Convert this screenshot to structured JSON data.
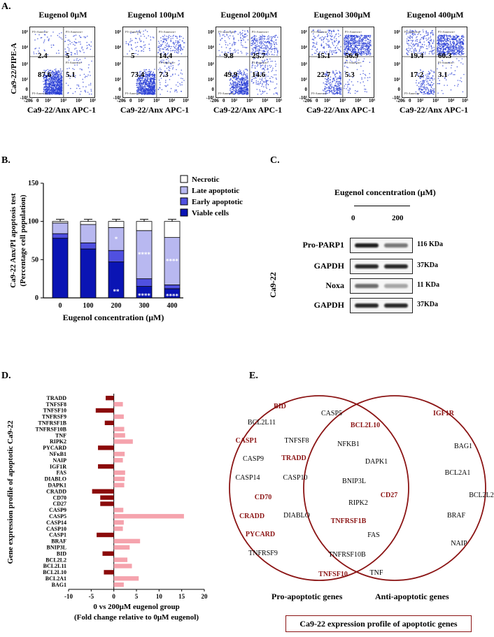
{
  "panels": {
    "a": "A.",
    "b": "B.",
    "c": "C.",
    "d": "D.",
    "e": "E."
  },
  "flow": {
    "ylabel": "Ca9-22/PIPE-A",
    "xlabel": "Ca9-22/Anx APC-1",
    "y_ticks": [
      "10⁵",
      "10⁴",
      "10³",
      "10²",
      "0",
      "-10⁵"
    ],
    "x_ticks": [
      "-206",
      "0",
      "10²",
      "10³",
      "10⁴",
      "10⁵"
    ],
    "gate_labels": {
      "tl": "PI+Annexin-",
      "tr": "PI+Annexin+",
      "bl": "PI-Annexin-",
      "br": "PI-Annexin+"
    },
    "plots": [
      {
        "title": "Eugenol 0μM",
        "q": [
          "2.4",
          "5",
          "87.6",
          "5.1"
        ]
      },
      {
        "title": "Eugenol 100μM",
        "q": [
          "5",
          "14.4",
          "73.4",
          "7.3"
        ]
      },
      {
        "title": "Eugenol 200μM",
        "q": [
          "9.8",
          "25.7",
          "49.9",
          "14.6"
        ]
      },
      {
        "title": "Eugenol 300μM",
        "q": [
          "15.1",
          "56.9",
          "22.7",
          "5.3"
        ]
      },
      {
        "title": "Eugenol 400μM",
        "q": [
          "19.4",
          "60.3",
          "17.2",
          "3.1"
        ]
      }
    ]
  },
  "chart_data": [
    {
      "type": "bar",
      "title": "",
      "xlabel": "Eugenol concentration (μM)",
      "ylabel": "Ca9-22 Anx/PI apoptosis test (Percentage cell population)",
      "ylim": [
        0,
        150
      ],
      "y_ticks": [
        "0",
        "50",
        "100",
        "150"
      ],
      "categories": [
        "0",
        "100",
        "200",
        "300",
        "400"
      ],
      "stacked": true,
      "series": [
        {
          "name": "Viable cells",
          "color": "#0a14b4",
          "values": [
            78,
            64,
            47,
            15,
            12
          ]
        },
        {
          "name": "Early apoptotic",
          "color": "#5050e0",
          "values": [
            6,
            8,
            15,
            10,
            5
          ]
        },
        {
          "name": "Late apoptotic",
          "color": "#b8b8f0",
          "values": [
            14,
            24,
            30,
            63,
            62
          ]
        },
        {
          "name": "Necrotic",
          "color": "#ffffff",
          "values": [
            2,
            4,
            8,
            12,
            21
          ]
        }
      ],
      "annotations": [
        {
          "cat": "200",
          "text": "*",
          "pos": "late"
        },
        {
          "cat": "300",
          "text": "****",
          "pos": "late"
        },
        {
          "cat": "400",
          "text": "****",
          "pos": "late"
        },
        {
          "cat": "200",
          "text": "**",
          "pos": "viable"
        },
        {
          "cat": "300",
          "text": "****",
          "pos": "viable"
        },
        {
          "cat": "400",
          "text": "****",
          "pos": "viable"
        }
      ],
      "legend_position": "top-right"
    },
    {
      "type": "bar",
      "orientation": "horizontal",
      "xlabel": "0 vs 200μM eugenol group",
      "xlabel2": "(Fold change relative to 0μM eugenol)",
      "ylabel": "Gene expression profile of apoptotic Ca9-22",
      "xlim": [
        -10,
        20
      ],
      "x_ticks": [
        "-10",
        "-5",
        "0",
        "5",
        "10",
        "15",
        "20"
      ],
      "categories": [
        "TRADD",
        "TNFSF8",
        "TNFSF10",
        "TNFRSF9",
        "TNFRSF1B",
        "TNFRSF10B",
        "TNF",
        "RIPK2",
        "PYCARD",
        "NFκB1",
        "NAIP",
        "IGF1R",
        "FAS",
        "DIABLO",
        "DAPK1",
        "CRADD",
        "CD70",
        "CD27",
        "CASP9",
        "CASP5",
        "CASP14",
        "CASP10",
        "CASP1",
        "BRAF",
        "BNIP3L",
        "BID",
        "BCL2L2",
        "BCL2L11",
        "BCL2L10",
        "BCL2A1",
        "BAG1"
      ],
      "values": [
        -1.8,
        2.0,
        -4.0,
        2.2,
        -2.0,
        2.3,
        2.5,
        4.2,
        -3.5,
        2.4,
        2.0,
        -3.5,
        2.5,
        2.4,
        2.3,
        -4.8,
        -3.0,
        -3.0,
        2.1,
        15.5,
        2.2,
        2.0,
        -3.8,
        5.8,
        3.5,
        -2.5,
        3.0,
        4.0,
        -2.2,
        5.5,
        2.2
      ],
      "colors": {
        "up": "#f5a3ad",
        "down": "#8b0a0a"
      }
    }
  ],
  "western": {
    "title": "Eugenol concentration (μM)",
    "lanes": [
      "0",
      "200"
    ],
    "cell_line": "Ca9-22",
    "rows": [
      {
        "label": "Pro-PARP1",
        "kda": "116 KDa"
      },
      {
        "label": "GAPDH",
        "kda": "37KDa"
      },
      {
        "label": "Noxa",
        "kda": "11 KDa"
      },
      {
        "label": "GAPDH",
        "kda": "37KDa"
      }
    ]
  },
  "venn": {
    "pro_only": [
      {
        "t": "BID",
        "c": "red"
      },
      {
        "t": "CASP5",
        "c": "black"
      },
      {
        "t": "BCL2L11",
        "c": "black"
      },
      {
        "t": "CASP1",
        "c": "red"
      },
      {
        "t": "TNFSF8",
        "c": "black"
      },
      {
        "t": "CASP9",
        "c": "black"
      },
      {
        "t": "TRADD",
        "c": "red"
      },
      {
        "t": "CASP14",
        "c": "black"
      },
      {
        "t": "CASP10",
        "c": "black"
      },
      {
        "t": "CD70",
        "c": "red"
      },
      {
        "t": "CRADD",
        "c": "red"
      },
      {
        "t": "DIABLO",
        "c": "black"
      },
      {
        "t": "PYCARD",
        "c": "red"
      },
      {
        "t": "TNFRSF9",
        "c": "black"
      }
    ],
    "shared": [
      {
        "t": "BCL2L10",
        "c": "red"
      },
      {
        "t": "NFKB1",
        "c": "black"
      },
      {
        "t": "DAPK1",
        "c": "black"
      },
      {
        "t": "BNIP3L",
        "c": "black"
      },
      {
        "t": "CD27",
        "c": "red"
      },
      {
        "t": "RIPK2",
        "c": "black"
      },
      {
        "t": "TNFRSF1B",
        "c": "red"
      },
      {
        "t": "FAS",
        "c": "black"
      },
      {
        "t": "TNFRSF10B",
        "c": "black"
      },
      {
        "t": "TNF",
        "c": "black"
      },
      {
        "t": "TNFSF10",
        "c": "red"
      }
    ],
    "anti_only": [
      {
        "t": "IGF1R",
        "c": "red"
      },
      {
        "t": "BAG1",
        "c": "black"
      },
      {
        "t": "BCL2A1",
        "c": "black"
      },
      {
        "t": "BCL2L2",
        "c": "black"
      },
      {
        "t": "BRAF",
        "c": "black"
      },
      {
        "t": "NAIP",
        "c": "black"
      }
    ],
    "pro_label": "Pro-apoptotic genes",
    "anti_label": "Anti-apoptotic genes",
    "box_label": "Ca9-22 expression profile of apoptotic genes",
    "colors": {
      "red": "#8b1414",
      "black": "#000000",
      "circle": "#8b1414"
    }
  }
}
